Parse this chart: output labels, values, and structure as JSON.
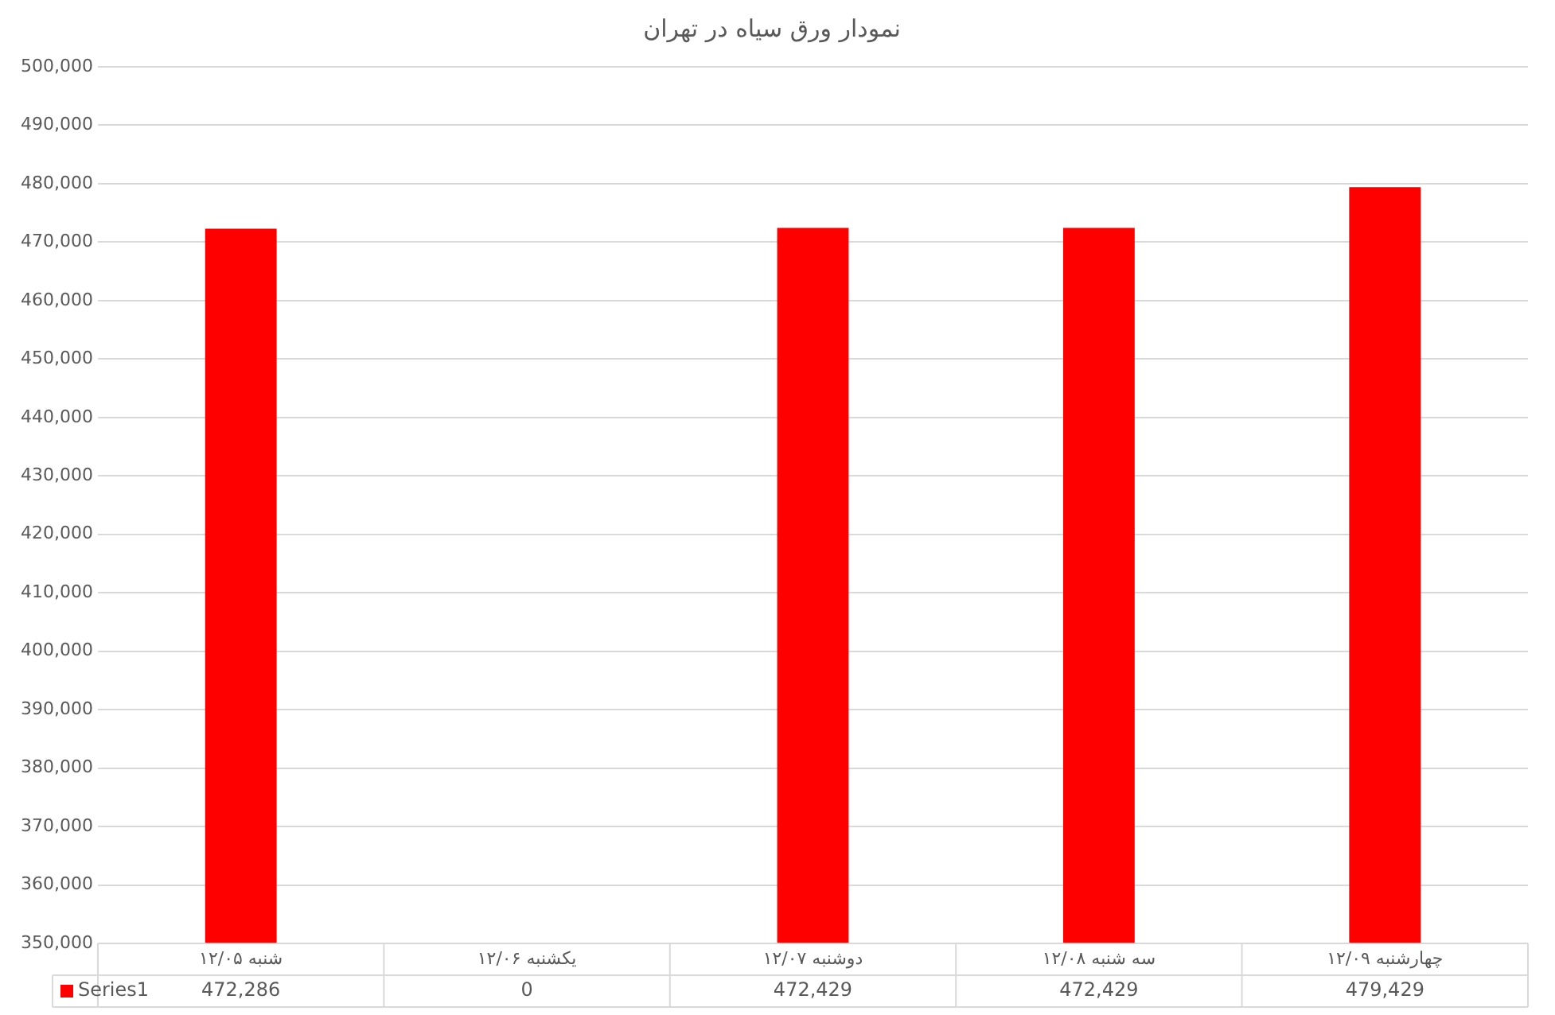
{
  "chart_data": {
    "type": "bar",
    "title": "نمودار ورق سیاه در تهران",
    "categories": [
      "شنبه ۱۲/۰۵",
      "یکشنبه ۱۲/۰۶",
      "دوشنبه ۱۲/۰۷",
      "سه شنبه ۱۲/۰۸",
      "چهارشنبه ۱۲/۰۹"
    ],
    "series": [
      {
        "name": "Series1",
        "color": "#ff0000",
        "values": [
          472286,
          null,
          472429,
          472429,
          479429
        ],
        "value_labels": [
          "472,286",
          "0",
          "472,429",
          "472,429",
          "479,429"
        ]
      }
    ],
    "ylim": [
      350000,
      500000
    ],
    "yticks": [
      {
        "value": 350000,
        "label": "350,000"
      },
      {
        "value": 360000,
        "label": "360,000"
      },
      {
        "value": 370000,
        "label": "370,000"
      },
      {
        "value": 380000,
        "label": "380,000"
      },
      {
        "value": 390000,
        "label": "390,000"
      },
      {
        "value": 400000,
        "label": "400,000"
      },
      {
        "value": 410000,
        "label": "410,000"
      },
      {
        "value": 420000,
        "label": "420,000"
      },
      {
        "value": 430000,
        "label": "430,000"
      },
      {
        "value": 440000,
        "label": "440,000"
      },
      {
        "value": 450000,
        "label": "450,000"
      },
      {
        "value": 460000,
        "label": "460,000"
      },
      {
        "value": 470000,
        "label": "470,000"
      },
      {
        "value": 480000,
        "label": "480,000"
      },
      {
        "value": 490000,
        "label": "490,000"
      },
      {
        "value": 500000,
        "label": "500,000"
      }
    ],
    "grid": "y",
    "legend": "bottom"
  }
}
